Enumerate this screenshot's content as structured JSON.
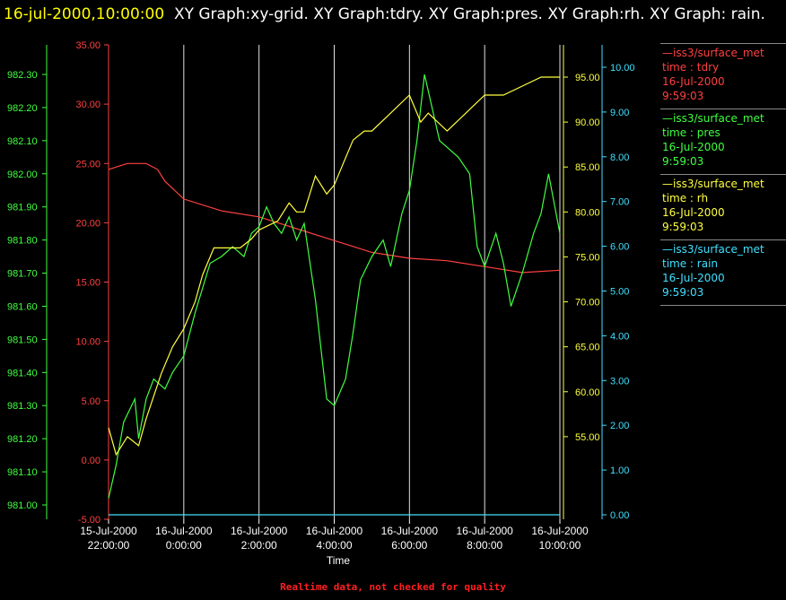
{
  "header": {
    "timestamp": "16-jul-2000,10:00:00",
    "graphs": "XY Graph:xy-grid.  XY Graph:tdry.  XY Graph:pres.  XY Graph:rh.  XY Graph: rain."
  },
  "footer": {
    "note": "Realtime data, not checked for quality"
  },
  "legend": [
    {
      "source": "—iss3/surface_met",
      "field": "time : tdry",
      "date": "16-Jul-2000",
      "time": "9:59:03",
      "color": "#ff4040"
    },
    {
      "source": "—iss3/surface_met",
      "field": "time : pres",
      "date": "16-Jul-2000",
      "time": "9:59:03",
      "color": "#40ff40"
    },
    {
      "source": "—iss3/surface_met",
      "field": "time : rh",
      "date": "16-Jul-2000",
      "time": "9:59:03",
      "color": "#ffff40"
    },
    {
      "source": "—iss3/surface_met",
      "field": "time : rain",
      "date": "16-Jul-2000",
      "time": "9:59:03",
      "color": "#40e0ff"
    }
  ],
  "chart_data": {
    "type": "line",
    "xlabel": "Time",
    "x_ticks": [
      {
        "date": "15-Jul-2000",
        "time": "22:00:00",
        "hours": -2
      },
      {
        "date": "16-Jul-2000",
        "time": "0:00:00",
        "hours": 0
      },
      {
        "date": "16-Jul-2000",
        "time": "2:00:00",
        "hours": 2
      },
      {
        "date": "16-Jul-2000",
        "time": "4:00:00",
        "hours": 4
      },
      {
        "date": "16-Jul-2000",
        "time": "6:00:00",
        "hours": 6
      },
      {
        "date": "16-Jul-2000",
        "time": "8:00:00",
        "hours": 8
      },
      {
        "date": "16-Jul-2000",
        "time": "10:00:00",
        "hours": 10
      }
    ],
    "xlim_hours": [
      -2,
      10
    ],
    "grid": "vertical",
    "legend_position": "right",
    "axes": {
      "tdry": {
        "color": "#ff4040",
        "min": -5,
        "max": 35,
        "ticks": [
          "-5.00",
          "0.00",
          "5.00",
          "10.00",
          "15.00",
          "20.00",
          "25.00",
          "30.00",
          "35.00"
        ]
      },
      "pres": {
        "color": "#40ff40",
        "min": 981.0,
        "max": 982.3,
        "ticks": [
          "981.00",
          "981.10",
          "981.20",
          "981.30",
          "981.40",
          "981.50",
          "981.60",
          "981.70",
          "981.80",
          "981.90",
          "982.00",
          "982.10",
          "982.20",
          "982.30"
        ]
      },
      "rh": {
        "color": "#ffff40",
        "min": 50,
        "max": 95,
        "ticks": [
          "55.00",
          "60.00",
          "65.00",
          "70.00",
          "75.00",
          "80.00",
          "85.00",
          "90.00",
          "95.00"
        ]
      },
      "rain": {
        "color": "#40e0ff",
        "min": 0,
        "max": 10,
        "ticks": [
          "0.00",
          "1.00",
          "2.00",
          "3.00",
          "4.00",
          "5.00",
          "6.00",
          "7.00",
          "8.00",
          "9.00",
          "10.00"
        ]
      }
    },
    "series": [
      {
        "key": "tdry",
        "x_hours": [
          -2,
          -1.5,
          -1,
          -0.7,
          -0.5,
          0,
          1,
          2,
          3,
          4,
          5,
          6,
          7,
          8,
          9,
          10
        ],
        "values": [
          24.5,
          25,
          25,
          24.5,
          23.5,
          22,
          21,
          20.5,
          19.5,
          18.5,
          17.5,
          17,
          16.8,
          16.3,
          15.8,
          16
        ]
      },
      {
        "key": "pres",
        "x_hours": [
          -2,
          -1.8,
          -1.6,
          -1.3,
          -1.2,
          -1,
          -0.8,
          -0.6,
          -0.5,
          -0.3,
          0,
          0.3,
          0.7,
          1,
          1.3,
          1.6,
          1.8,
          2,
          2.2,
          2.4,
          2.6,
          2.8,
          3,
          3.2,
          3.5,
          3.8,
          4,
          4.3,
          4.5,
          4.7,
          5,
          5.3,
          5.5,
          5.8,
          6,
          6.2,
          6.4,
          6.6,
          6.8,
          7,
          7.3,
          7.6,
          7.8,
          8,
          8.3,
          8.5,
          8.7,
          9,
          9.3,
          9.5,
          9.7,
          10
        ],
        "values": [
          981.02,
          981.12,
          981.25,
          981.32,
          981.2,
          981.32,
          981.38,
          981.36,
          981.35,
          981.4,
          981.45,
          981.58,
          981.73,
          981.75,
          981.78,
          981.75,
          981.82,
          981.84,
          981.9,
          981.85,
          981.82,
          981.87,
          981.8,
          981.85,
          981.62,
          981.32,
          981.3,
          981.38,
          981.52,
          981.68,
          981.75,
          981.8,
          981.72,
          981.88,
          981.95,
          982.1,
          982.3,
          982.2,
          982.1,
          982.08,
          982.05,
          982.0,
          981.78,
          981.72,
          981.82,
          981.73,
          981.6,
          981.7,
          981.82,
          981.88,
          982.0,
          981.82
        ]
      },
      {
        "key": "rh",
        "x_hours": [
          -2,
          -1.8,
          -1.5,
          -1.2,
          -1,
          -0.6,
          -0.3,
          0,
          0.3,
          0.5,
          0.8,
          1,
          1.5,
          1.8,
          2,
          2.5,
          2.8,
          3,
          3.2,
          3.5,
          3.8,
          4,
          4.2,
          4.5,
          4.8,
          5,
          5.5,
          6,
          6.3,
          6.5,
          7,
          7.5,
          8,
          8.5,
          9,
          9.5,
          10
        ],
        "values": [
          56,
          53,
          55,
          54,
          57,
          62,
          65,
          67,
          70,
          73,
          76,
          76,
          76,
          77,
          78,
          79,
          81,
          80,
          80,
          84,
          82,
          83,
          85,
          88,
          89,
          89,
          91,
          93,
          90,
          91,
          89,
          91,
          93,
          93,
          94,
          95,
          95
        ]
      },
      {
        "key": "rain",
        "x_hours": [
          -2,
          10
        ],
        "values": [
          0,
          0
        ]
      }
    ]
  }
}
